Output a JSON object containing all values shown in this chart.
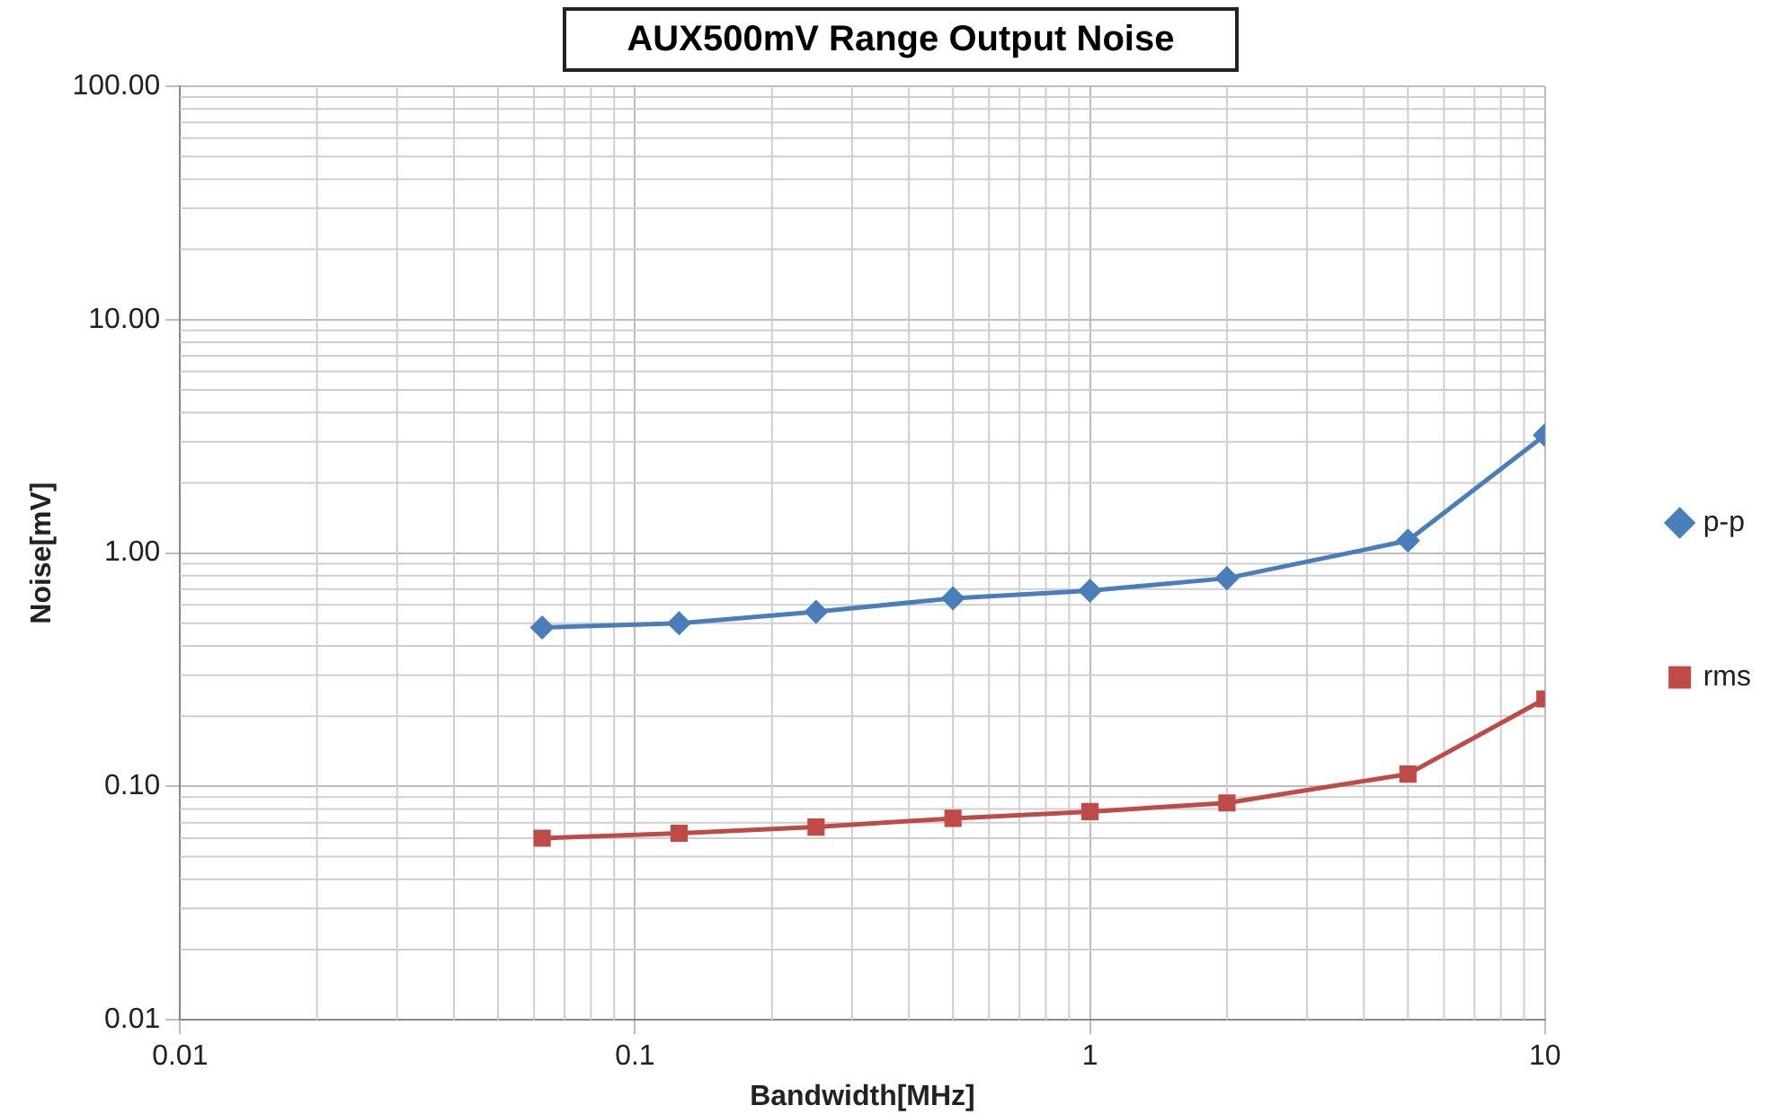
{
  "chart_data": {
    "type": "line",
    "title": "AUX500mV Range Output Noise",
    "xlabel": "Bandwidth[MHz]",
    "ylabel": "Noise[mV]",
    "x": [
      0.0625,
      0.125,
      0.25,
      0.5,
      1,
      2,
      5,
      10
    ],
    "series": [
      {
        "name": "p-p",
        "color": "#4a7ebb",
        "marker": "diamond",
        "values": [
          0.48,
          0.5,
          0.56,
          0.64,
          0.69,
          0.78,
          1.13,
          3.2
        ]
      },
      {
        "name": "rms",
        "color": "#be4b48",
        "marker": "square",
        "values": [
          0.06,
          0.063,
          0.067,
          0.073,
          0.078,
          0.085,
          0.113,
          0.237
        ]
      }
    ],
    "log": "xy",
    "xlim": [
      0.01,
      10
    ],
    "xticks": [
      0.01,
      0.1,
      1,
      10
    ],
    "ylim": [
      0.01,
      100
    ],
    "yticks": [
      {
        "value": 0.01,
        "label": "0.01"
      },
      {
        "value": 0.1,
        "label": "0.10"
      },
      {
        "value": 1,
        "label": "1.00"
      },
      {
        "value": 10,
        "label": "10.00"
      },
      {
        "value": 100,
        "label": "100.00"
      }
    ],
    "grid": true,
    "legend": "right",
    "line_style": "solid"
  }
}
